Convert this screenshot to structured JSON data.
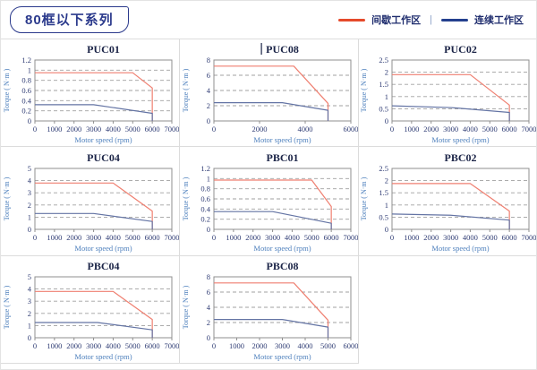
{
  "page": {
    "background": "#ffffff",
    "border_color": "#e3e3e3",
    "grid_line_color": "#dcdcdc"
  },
  "header": {
    "badge": {
      "label": "80框以下系列",
      "text_color": "#2b3a8c"
    },
    "legend": {
      "separator": "|",
      "items": [
        {
          "name": "intermittent-zone",
          "label": "间歇工作区",
          "swatch_color": "#e54a2b"
        },
        {
          "name": "continuous-zone",
          "label": "连续工作区",
          "swatch_color": "#24408e"
        }
      ]
    }
  },
  "chart_style": {
    "title_color": "#1b2447",
    "tick_color": "#2f3c74",
    "axis_label_color": "#4f81bd",
    "plot_border_color": "#8f8f8f",
    "gridline_color": "#a0a0a0",
    "red_line_color": "#ef7f70",
    "blue_line_color": "#6474a4"
  },
  "chart_data": [
    {
      "type": "line",
      "title": "PUC01",
      "cursor_before_title": false,
      "xlabel": "Motor speed (rpm)",
      "ylabel": "Torque ( N·m )",
      "xlim": [
        0,
        7000
      ],
      "xticks": [
        0,
        1000,
        2000,
        3000,
        4000,
        5000,
        6000,
        7000
      ],
      "ylim": [
        0,
        1.2
      ],
      "yticks": [
        0,
        0.2,
        0.4,
        0.6,
        0.8,
        1,
        1.2
      ],
      "series": [
        {
          "name": "间歇工作区",
          "color": "red",
          "points": [
            [
              0,
              0.95
            ],
            [
              5000,
              0.95
            ],
            [
              6000,
              0.65
            ],
            [
              6000,
              0
            ]
          ]
        },
        {
          "name": "连续工作区",
          "color": "blue",
          "points": [
            [
              0,
              0.32
            ],
            [
              3000,
              0.32
            ],
            [
              6000,
              0.15
            ],
            [
              6000,
              0
            ]
          ]
        }
      ]
    },
    {
      "type": "line",
      "title": "PUC08",
      "cursor_before_title": true,
      "xlabel": "Motor speed (rpm)",
      "ylabel": "Torque ( N·m )",
      "xlim": [
        0,
        6000
      ],
      "xticks": [
        0,
        2000,
        4000,
        6000
      ],
      "ylim": [
        0,
        8
      ],
      "yticks": [
        0,
        2,
        4,
        6,
        8
      ],
      "series": [
        {
          "name": "间歇工作区",
          "color": "red",
          "points": [
            [
              0,
              7.2
            ],
            [
              3500,
              7.2
            ],
            [
              5000,
              2.3
            ],
            [
              5000,
              0
            ]
          ]
        },
        {
          "name": "连续工作区",
          "color": "blue",
          "points": [
            [
              0,
              2.4
            ],
            [
              3000,
              2.4
            ],
            [
              5000,
              1.4
            ],
            [
              5000,
              0
            ]
          ]
        }
      ]
    },
    {
      "type": "line",
      "title": "PUC02",
      "cursor_before_title": false,
      "xlabel": "Motor speed (rpm)",
      "ylabel": "Torque ( N·m )",
      "xlim": [
        0,
        7000
      ],
      "xticks": [
        0,
        1000,
        2000,
        3000,
        4000,
        5000,
        6000,
        7000
      ],
      "ylim": [
        0,
        2.5
      ],
      "yticks": [
        0,
        0.5,
        1,
        1.5,
        2,
        2.5
      ],
      "series": [
        {
          "name": "间歇工作区",
          "color": "red",
          "points": [
            [
              0,
              1.9
            ],
            [
              4000,
              1.9
            ],
            [
              6000,
              0.65
            ],
            [
              6000,
              0
            ]
          ]
        },
        {
          "name": "连续工作区",
          "color": "blue",
          "points": [
            [
              0,
              0.62
            ],
            [
              3000,
              0.55
            ],
            [
              6000,
              0.35
            ],
            [
              6000,
              0
            ]
          ]
        }
      ]
    },
    {
      "type": "line",
      "title": "PUC04",
      "cursor_before_title": false,
      "xlabel": "Motor speed (rpm)",
      "ylabel": "Torque ( N·m )",
      "xlim": [
        0,
        7000
      ],
      "xticks": [
        0,
        1000,
        2000,
        3000,
        4000,
        5000,
        6000,
        7000
      ],
      "ylim": [
        0,
        5
      ],
      "yticks": [
        0,
        1,
        2,
        3,
        4,
        5
      ],
      "series": [
        {
          "name": "间歇工作区",
          "color": "red",
          "points": [
            [
              0,
              3.8
            ],
            [
              4000,
              3.8
            ],
            [
              6000,
              1.5
            ],
            [
              6000,
              0
            ]
          ]
        },
        {
          "name": "连续工作区",
          "color": "blue",
          "points": [
            [
              0,
              1.3
            ],
            [
              3000,
              1.3
            ],
            [
              6000,
              0.65
            ],
            [
              6000,
              0
            ]
          ]
        }
      ]
    },
    {
      "type": "line",
      "title": "PBC01",
      "cursor_before_title": false,
      "xlabel": "Motor speed (rpm)",
      "ylabel": "Torque ( N·m )",
      "xlim": [
        0,
        7000
      ],
      "xticks": [
        0,
        1000,
        2000,
        3000,
        4000,
        5000,
        6000,
        7000
      ],
      "ylim": [
        0,
        1.2
      ],
      "yticks": [
        0,
        0.2,
        0.4,
        0.6,
        0.8,
        1,
        1.2
      ],
      "series": [
        {
          "name": "间歇工作区",
          "color": "red",
          "points": [
            [
              0,
              0.97
            ],
            [
              5000,
              0.97
            ],
            [
              6000,
              0.45
            ],
            [
              6000,
              0
            ]
          ]
        },
        {
          "name": "连续工作区",
          "color": "blue",
          "points": [
            [
              0,
              0.35
            ],
            [
              3000,
              0.35
            ],
            [
              6000,
              0.12
            ],
            [
              6000,
              0
            ]
          ]
        }
      ]
    },
    {
      "type": "line",
      "title": "PBC02",
      "cursor_before_title": false,
      "xlabel": "Motor speed (rpm)",
      "ylabel": "Torque ( N·m )",
      "xlim": [
        0,
        7000
      ],
      "xticks": [
        0,
        1000,
        2000,
        3000,
        4000,
        5000,
        6000,
        7000
      ],
      "ylim": [
        0,
        2.5
      ],
      "yticks": [
        0,
        0.5,
        1,
        1.5,
        2,
        2.5
      ],
      "series": [
        {
          "name": "间歇工作区",
          "color": "red",
          "points": [
            [
              0,
              1.88
            ],
            [
              4000,
              1.88
            ],
            [
              6000,
              0.75
            ],
            [
              6000,
              0
            ]
          ]
        },
        {
          "name": "连续工作区",
          "color": "blue",
          "points": [
            [
              0,
              0.63
            ],
            [
              3000,
              0.58
            ],
            [
              6000,
              0.38
            ],
            [
              6000,
              0
            ]
          ]
        }
      ]
    },
    {
      "type": "line",
      "title": "PBC04",
      "cursor_before_title": false,
      "xlabel": "Motor speed (rpm)",
      "ylabel": "Torque ( N·m )",
      "xlim": [
        0,
        7000
      ],
      "xticks": [
        0,
        1000,
        2000,
        3000,
        4000,
        5000,
        6000,
        7000
      ],
      "ylim": [
        0,
        5
      ],
      "yticks": [
        0,
        1,
        2,
        3,
        4,
        5
      ],
      "series": [
        {
          "name": "间歇工作区",
          "color": "red",
          "points": [
            [
              0,
              3.8
            ],
            [
              4000,
              3.8
            ],
            [
              6000,
              1.5
            ],
            [
              6000,
              0
            ]
          ]
        },
        {
          "name": "连续工作区",
          "color": "blue",
          "points": [
            [
              0,
              1.25
            ],
            [
              3200,
              1.25
            ],
            [
              6000,
              0.65
            ],
            [
              6000,
              0
            ]
          ]
        }
      ]
    },
    {
      "type": "line",
      "title": "PBC08",
      "cursor_before_title": false,
      "xlabel": "Motor speed (rpm)",
      "ylabel": "Torque ( N·m )",
      "xlim": [
        0,
        6000
      ],
      "xticks": [
        0,
        1000,
        2000,
        3000,
        4000,
        5000,
        6000
      ],
      "ylim": [
        0,
        8
      ],
      "yticks": [
        0,
        2,
        4,
        6,
        8
      ],
      "series": [
        {
          "name": "间歇工作区",
          "color": "red",
          "points": [
            [
              0,
              7.2
            ],
            [
              3500,
              7.2
            ],
            [
              5000,
              2.3
            ],
            [
              5000,
              0
            ]
          ]
        },
        {
          "name": "连续工作区",
          "color": "blue",
          "points": [
            [
              0,
              2.4
            ],
            [
              3000,
              2.4
            ],
            [
              5000,
              1.4
            ],
            [
              5000,
              0
            ]
          ]
        }
      ]
    }
  ]
}
